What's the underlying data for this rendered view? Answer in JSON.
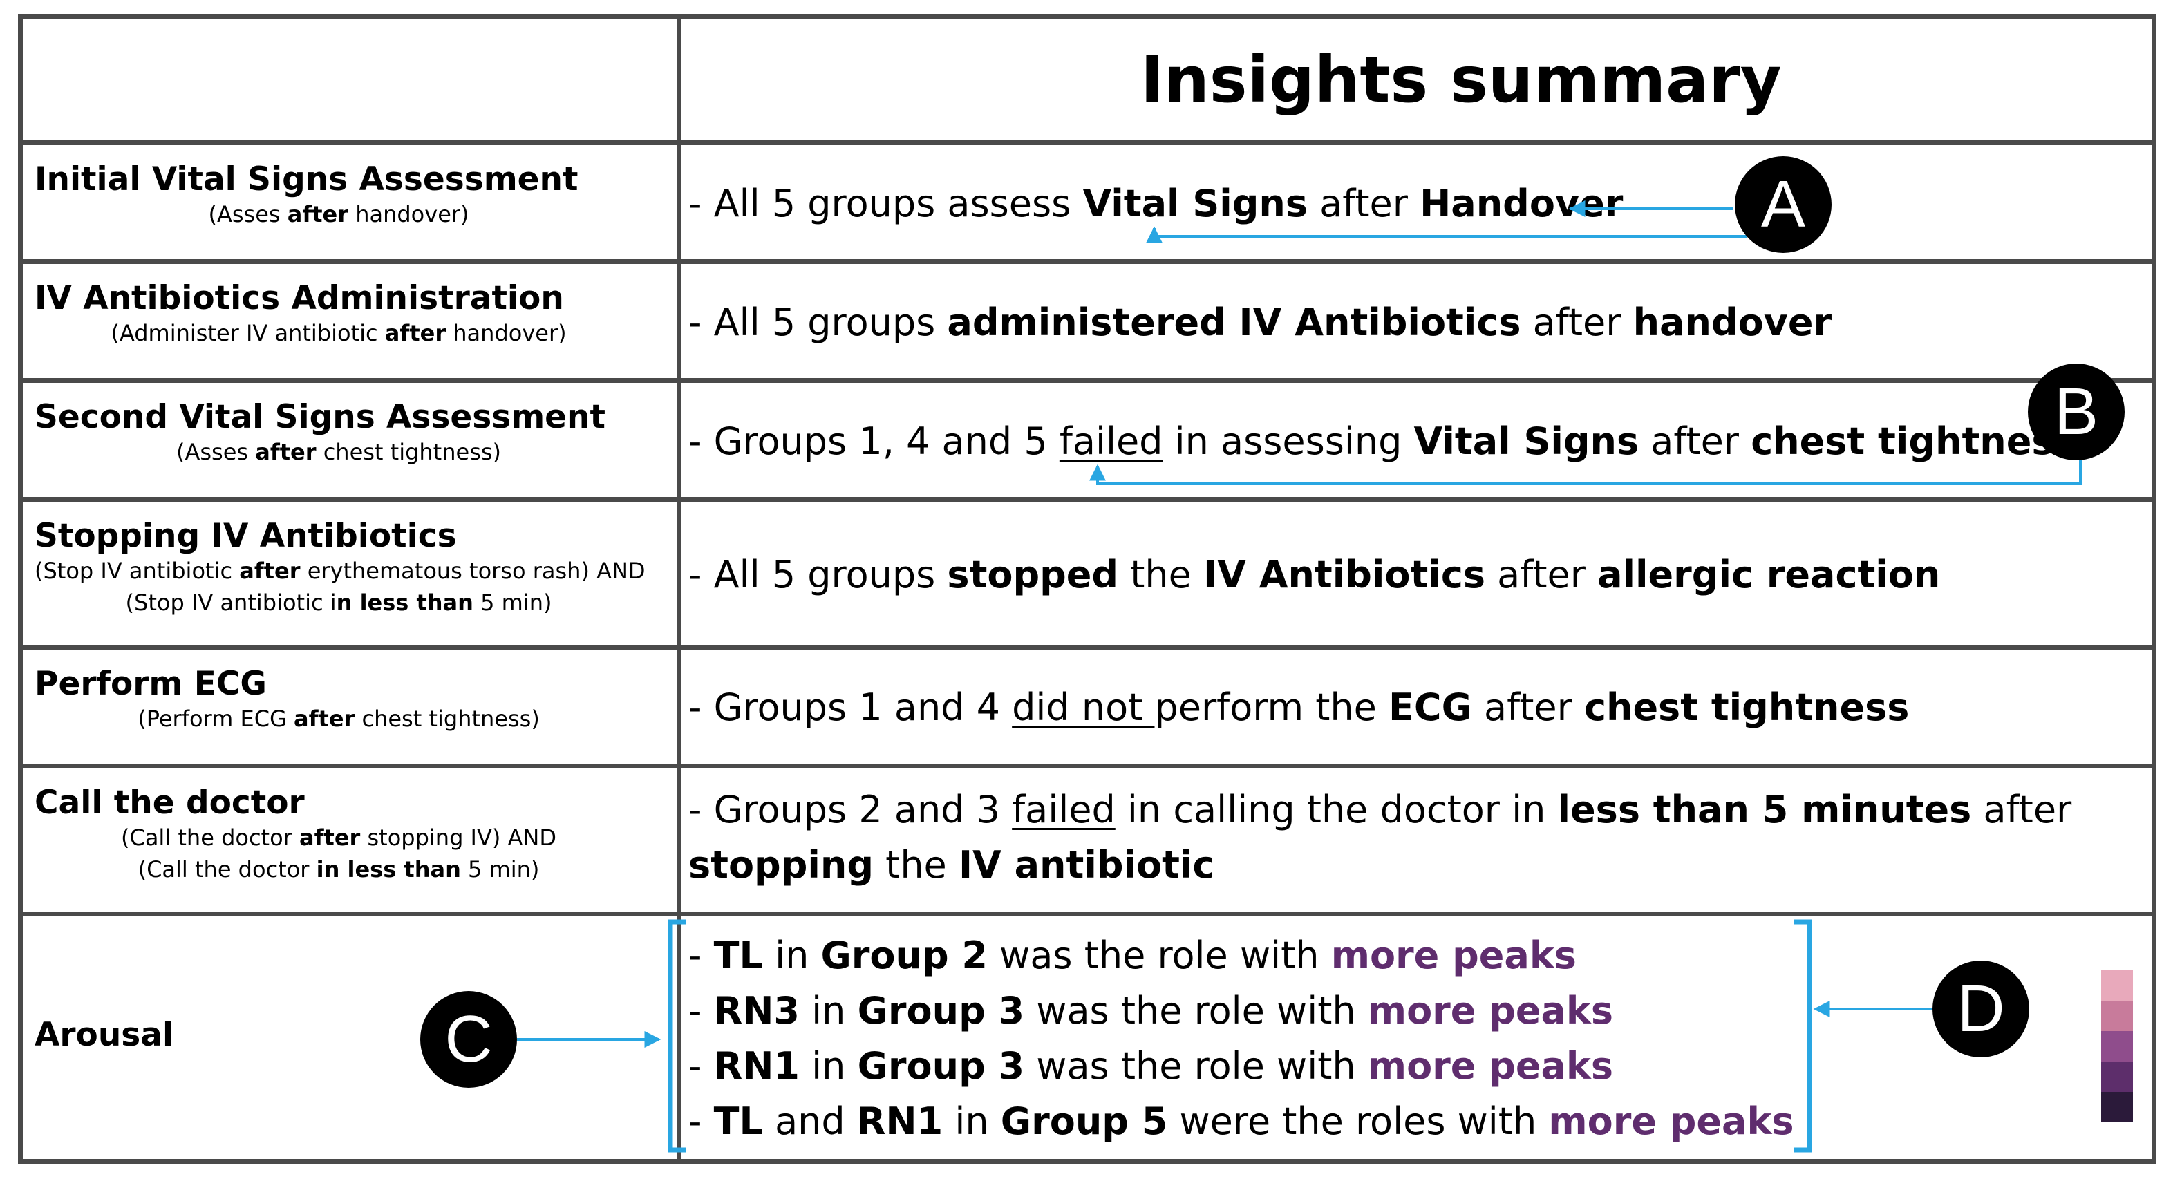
{
  "header": {
    "title": "Insights summary"
  },
  "rows": [
    {
      "title": "Initial Vital Signs Assessment",
      "sub1": [
        {
          "t": "(Asses "
        },
        {
          "t": "after",
          "b": true
        },
        {
          "t": " handover)"
        }
      ],
      "insight1": [
        {
          "t": "- All 5 groups assess "
        },
        {
          "t": "Vital Signs",
          "b": true
        },
        {
          "t": " after "
        },
        {
          "t": "Handover",
          "b": true
        }
      ]
    },
    {
      "title": "IV Antibiotics Administration",
      "sub1": [
        {
          "t": "(Administer IV antibiotic "
        },
        {
          "t": "after",
          "b": true
        },
        {
          "t": " handover)"
        }
      ],
      "insight1": [
        {
          "t": "- All 5 groups "
        },
        {
          "t": "administered IV Antibiotics",
          "b": true
        },
        {
          "t": " after "
        },
        {
          "t": "handover",
          "b": true
        }
      ]
    },
    {
      "title": "Second Vital Signs Assessment",
      "sub1": [
        {
          "t": "(Asses "
        },
        {
          "t": "after",
          "b": true
        },
        {
          "t": " chest tightness)"
        }
      ],
      "insight1": [
        {
          "t": "- Groups 1, 4 and 5 "
        },
        {
          "t": "failed",
          "u": true
        },
        {
          "t": " in assessing "
        },
        {
          "t": "Vital Signs",
          "b": true
        },
        {
          "t": " after "
        },
        {
          "t": "chest tightness",
          "b": true
        }
      ]
    },
    {
      "title": "Stopping IV Antibiotics",
      "sub1": [
        {
          "t": "(Stop IV antibiotic "
        },
        {
          "t": "after",
          "b": true
        },
        {
          "t": " erythematous torso rash) AND"
        }
      ],
      "sub2": [
        {
          "t": "(Stop IV antibiotic i"
        },
        {
          "t": "n less than",
          "b": true
        },
        {
          "t": " 5 min)"
        }
      ],
      "insight1": [
        {
          "t": "- All 5 groups "
        },
        {
          "t": "stopped",
          "b": true
        },
        {
          "t": " the "
        },
        {
          "t": "IV Antibiotics",
          "b": true
        },
        {
          "t": " after "
        },
        {
          "t": "allergic reaction",
          "b": true
        }
      ]
    },
    {
      "title": "Perform ECG",
      "sub1": [
        {
          "t": "(Perform ECG "
        },
        {
          "t": "after",
          "b": true
        },
        {
          "t": " chest tightness)"
        }
      ],
      "insight1": [
        {
          "t": "- Groups 1 and 4 "
        },
        {
          "t": "did not ",
          "u": true
        },
        {
          "t": "perform the "
        },
        {
          "t": "ECG",
          "b": true
        },
        {
          "t": " after "
        },
        {
          "t": "chest tightness",
          "b": true
        }
      ]
    },
    {
      "title": "Call the doctor",
      "sub1": [
        {
          "t": "(Call the doctor "
        },
        {
          "t": "after",
          "b": true
        },
        {
          "t": " stopping IV) AND"
        }
      ],
      "sub2": [
        {
          "t": "(Call the doctor "
        },
        {
          "t": "in less than",
          "b": true
        },
        {
          "t": " 5 min)"
        }
      ],
      "insight1": [
        {
          "t": "- Groups 2 and 3 "
        },
        {
          "t": "failed",
          "u": true
        },
        {
          "t": " in calling the doctor in "
        },
        {
          "t": "less than 5 minutes",
          "b": true
        },
        {
          "t": " after"
        }
      ],
      "insight2": [
        {
          "t": "stopping",
          "b": true
        },
        {
          "t": " the "
        },
        {
          "t": "IV antibiotic",
          "b": true
        }
      ]
    },
    {
      "title": "Arousal",
      "lines": [
        [
          {
            "t": "- "
          },
          {
            "t": "TL",
            "b": true
          },
          {
            "t": " in "
          },
          {
            "t": "Group 2",
            "b": true
          },
          {
            "t": " was the role with "
          },
          {
            "t": "more peaks",
            "p": true
          }
        ],
        [
          {
            "t": "- "
          },
          {
            "t": "RN3",
            "b": true
          },
          {
            "t": " in "
          },
          {
            "t": "Group 3",
            "b": true
          },
          {
            "t": " was the role with "
          },
          {
            "t": "more peaks",
            "p": true
          }
        ],
        [
          {
            "t": "- "
          },
          {
            "t": "RN1",
            "b": true
          },
          {
            "t": " in "
          },
          {
            "t": "Group 3",
            "b": true
          },
          {
            "t": " was the role with "
          },
          {
            "t": "more peaks",
            "p": true
          }
        ],
        [
          {
            "t": "- "
          },
          {
            "t": "TL",
            "b": true
          },
          {
            "t": " and "
          },
          {
            "t": "RN1",
            "b": true
          },
          {
            "t": " in "
          },
          {
            "t": "Group 5",
            "b": true
          },
          {
            "t": " were the roles with "
          },
          {
            "t": "more peaks",
            "p": true
          }
        ]
      ]
    }
  ],
  "annotations": [
    {
      "label": "A"
    },
    {
      "label": "B"
    },
    {
      "label": "C"
    },
    {
      "label": "D"
    }
  ],
  "colors": {
    "arrow": "#29a6e2",
    "border": "#4a4a4a",
    "highlight": "#5f2d6e"
  },
  "scale_swatches": [
    "#e8a9bb",
    "#c87b9b",
    "#8f4d8c",
    "#5d2e6b",
    "#2b1a3a"
  ]
}
